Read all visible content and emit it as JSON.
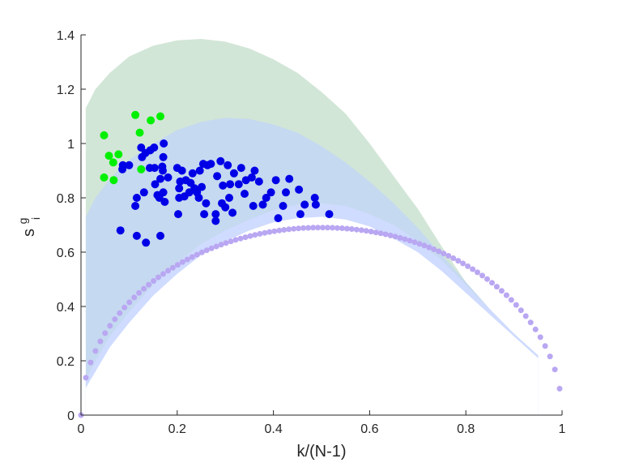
{
  "chart_data": {
    "type": "scatter",
    "xlabel": "k/(N-1)",
    "ylabel": {
      "main": "s",
      "sup": "g",
      "sub": "i"
    },
    "xlim": [
      0,
      1
    ],
    "ylim": [
      0,
      1.4
    ],
    "xticks": [
      0,
      0.2,
      0.4,
      0.6,
      0.8,
      1
    ],
    "xtick_labels": [
      "0",
      "0.2",
      "0.4",
      "0.6",
      "0.8",
      "1"
    ],
    "yticks": [
      0,
      0.2,
      0.4,
      0.6,
      0.8,
      1,
      1.2,
      1.4
    ],
    "ytick_labels": [
      "0",
      "0.2",
      "0.4",
      "0.6",
      "0.8",
      "1",
      "1.2",
      "1.4"
    ],
    "grid": false,
    "bands": [
      {
        "color": "#d2e6d7",
        "upper": [
          [
            0.01,
            1.13
          ],
          [
            0.03,
            1.2
          ],
          [
            0.06,
            1.26
          ],
          [
            0.1,
            1.32
          ],
          [
            0.15,
            1.36
          ],
          [
            0.2,
            1.38
          ],
          [
            0.25,
            1.385
          ],
          [
            0.3,
            1.375
          ],
          [
            0.35,
            1.35
          ],
          [
            0.4,
            1.31
          ],
          [
            0.45,
            1.26
          ],
          [
            0.5,
            1.19
          ],
          [
            0.55,
            1.11
          ],
          [
            0.6,
            1.0
          ],
          [
            0.65,
            0.88
          ],
          [
            0.7,
            0.76
          ],
          [
            0.75,
            0.62
          ],
          [
            0.8,
            0.49
          ],
          [
            0.85,
            0.39
          ],
          [
            0.9,
            0.3
          ],
          [
            0.95,
            0.22
          ]
        ]
      },
      {
        "color": "#c5d9f0",
        "upper": [
          [
            0.01,
            0.73
          ],
          [
            0.03,
            0.8
          ],
          [
            0.06,
            0.87
          ],
          [
            0.1,
            0.94
          ],
          [
            0.15,
            1.0
          ],
          [
            0.2,
            1.05
          ],
          [
            0.25,
            1.08
          ],
          [
            0.3,
            1.095
          ],
          [
            0.35,
            1.09
          ],
          [
            0.4,
            1.07
          ],
          [
            0.45,
            1.04
          ],
          [
            0.5,
            0.99
          ],
          [
            0.55,
            0.93
          ],
          [
            0.6,
            0.86
          ],
          [
            0.65,
            0.78
          ],
          [
            0.7,
            0.69
          ],
          [
            0.75,
            0.59
          ],
          [
            0.8,
            0.49
          ],
          [
            0.85,
            0.39
          ],
          [
            0.9,
            0.3
          ],
          [
            0.95,
            0.22
          ]
        ]
      },
      {
        "color": "#cfdbff",
        "upper": [
          [
            0.01,
            0.13
          ],
          [
            0.03,
            0.2
          ],
          [
            0.06,
            0.29
          ],
          [
            0.1,
            0.38
          ],
          [
            0.15,
            0.48
          ],
          [
            0.2,
            0.56
          ],
          [
            0.25,
            0.63
          ],
          [
            0.3,
            0.68
          ],
          [
            0.35,
            0.72
          ],
          [
            0.4,
            0.755
          ],
          [
            0.45,
            0.775
          ],
          [
            0.5,
            0.78
          ],
          [
            0.55,
            0.77
          ],
          [
            0.6,
            0.74
          ],
          [
            0.65,
            0.7
          ],
          [
            0.7,
            0.64
          ],
          [
            0.75,
            0.57
          ],
          [
            0.8,
            0.48
          ],
          [
            0.85,
            0.39
          ],
          [
            0.9,
            0.3
          ],
          [
            0.95,
            0.22
          ]
        ]
      },
      {
        "color": "#ffffff",
        "upper": [
          [
            0.01,
            0.1
          ],
          [
            0.03,
            0.16
          ],
          [
            0.06,
            0.25
          ],
          [
            0.1,
            0.34
          ],
          [
            0.15,
            0.44
          ],
          [
            0.2,
            0.52
          ],
          [
            0.25,
            0.59
          ],
          [
            0.3,
            0.64
          ],
          [
            0.35,
            0.68
          ],
          [
            0.4,
            0.71
          ],
          [
            0.45,
            0.725
          ],
          [
            0.5,
            0.73
          ],
          [
            0.55,
            0.72
          ],
          [
            0.6,
            0.695
          ],
          [
            0.65,
            0.65
          ],
          [
            0.7,
            0.6
          ],
          [
            0.75,
            0.53
          ],
          [
            0.8,
            0.45
          ],
          [
            0.85,
            0.37
          ],
          [
            0.9,
            0.29
          ],
          [
            0.95,
            0.21
          ]
        ]
      }
    ],
    "series": [
      {
        "color": "#b9a7f2",
        "marker_size": 3.5,
        "formula": "a*(x^b*(1-x)^c)^(1/(b+c))",
        "params": {
          "a": 1.381,
          "b": 1,
          "c": 1,
          "n_points": 100,
          "x_start": 0.0,
          "x_end": 0.995
        }
      },
      {
        "color": "#0000e6",
        "marker_size": 5,
        "x": [
          0.086,
          0.087,
          0.1,
          0.113,
          0.116,
          0.125,
          0.127,
          0.131,
          0.134,
          0.143,
          0.144,
          0.152,
          0.153,
          0.154,
          0.159,
          0.163,
          0.165,
          0.169,
          0.17,
          0.171,
          0.171,
          0.172,
          0.174,
          0.181,
          0.2,
          0.202,
          0.204,
          0.204,
          0.206,
          0.21,
          0.215,
          0.218,
          0.225,
          0.228,
          0.232,
          0.236,
          0.241,
          0.245,
          0.247,
          0.251,
          0.254,
          0.256,
          0.26,
          0.263,
          0.27,
          0.28,
          0.28,
          0.283,
          0.29,
          0.293,
          0.295,
          0.3,
          0.305,
          0.308,
          0.31,
          0.315,
          0.318,
          0.328,
          0.333,
          0.34,
          0.343,
          0.355,
          0.358,
          0.361,
          0.37,
          0.378,
          0.385,
          0.395,
          0.405,
          0.41,
          0.42,
          0.426,
          0.433,
          0.453,
          0.456,
          0.465,
          0.486,
          0.488,
          0.516,
          0.082,
          0.116,
          0.135,
          0.165
        ],
        "y": [
          0.905,
          0.92,
          0.92,
          0.77,
          0.8,
          0.985,
          0.95,
          0.82,
          0.965,
          0.91,
          0.975,
          0.985,
          0.91,
          0.85,
          0.81,
          0.8,
          0.87,
          0.915,
          0.9,
          0.95,
          0.82,
          1.0,
          0.785,
          0.875,
          0.91,
          0.74,
          0.8,
          0.835,
          0.86,
          0.9,
          0.805,
          0.865,
          0.82,
          0.855,
          0.89,
          0.835,
          0.82,
          0.8,
          0.9,
          0.84,
          0.925,
          0.74,
          0.78,
          0.92,
          0.925,
          0.74,
          0.715,
          0.88,
          0.935,
          0.78,
          0.845,
          0.765,
          0.92,
          0.8,
          0.85,
          0.745,
          0.89,
          0.85,
          0.91,
          0.815,
          0.865,
          0.875,
          0.77,
          0.9,
          0.86,
          0.775,
          0.8,
          0.82,
          0.865,
          0.725,
          0.77,
          0.82,
          0.87,
          0.83,
          0.74,
          0.775,
          0.8,
          0.775,
          0.74,
          0.68,
          0.66,
          0.635,
          0.66
        ],
        "jitter_note": ""
      },
      {
        "color": "#00f000",
        "marker_size": 5,
        "x": [
          0.048,
          0.048,
          0.058,
          0.067,
          0.068,
          0.078,
          0.113,
          0.122,
          0.125,
          0.145,
          0.165
        ],
        "y": [
          1.03,
          0.875,
          0.955,
          0.93,
          0.865,
          0.96,
          1.105,
          1.04,
          0.905,
          1.085,
          1.1
        ]
      }
    ]
  }
}
